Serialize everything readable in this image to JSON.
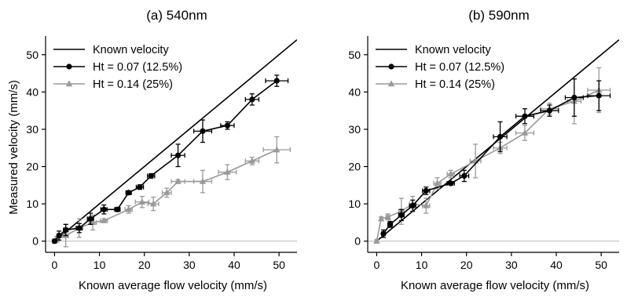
{
  "chart_data": [
    {
      "type": "line",
      "title": "(a) 540nm",
      "xlabel": "Known average flow velocity (mm/s)",
      "ylabel": "Measured velocity (mm/s)",
      "xlim": [
        -2,
        54
      ],
      "ylim": [
        -3,
        55
      ],
      "xticks": [
        0,
        10,
        20,
        30,
        40,
        50
      ],
      "yticks": [
        0,
        10,
        20,
        30,
        40,
        50
      ],
      "legend": "top-left",
      "grid": false,
      "reference_line": {
        "name": "Known velocity",
        "from": [
          0,
          0
        ],
        "to": [
          54,
          54
        ]
      },
      "series": [
        {
          "name": "Ht = 0.07 (12.5%)",
          "color": "#000000",
          "marker": "circle",
          "points": [
            {
              "x": 0.0,
              "y": 0.0,
              "xerr": 0.3,
              "yerr": 0.5
            },
            {
              "x": 1.0,
              "y": 1.5,
              "xerr": 0.4,
              "yerr": 1.2
            },
            {
              "x": 2.5,
              "y": 3.0,
              "xerr": 0.5,
              "yerr": 1.5
            },
            {
              "x": 5.5,
              "y": 3.5,
              "xerr": 0.6,
              "yerr": 1.2
            },
            {
              "x": 8.0,
              "y": 6.0,
              "xerr": 0.7,
              "yerr": 1.5
            },
            {
              "x": 11.0,
              "y": 8.5,
              "xerr": 0.7,
              "yerr": 1.2
            },
            {
              "x": 14.0,
              "y": 8.5,
              "xerr": 0.6,
              "yerr": 0.5
            },
            {
              "x": 16.5,
              "y": 13.0,
              "xerr": 0.6,
              "yerr": 0.5
            },
            {
              "x": 19.0,
              "y": 14.5,
              "xerr": 0.8,
              "yerr": 0.6
            },
            {
              "x": 21.5,
              "y": 17.5,
              "xerr": 0.8,
              "yerr": 0.6
            },
            {
              "x": 27.5,
              "y": 23.0,
              "xerr": 1.5,
              "yerr": 3.0
            },
            {
              "x": 33.0,
              "y": 29.5,
              "xerr": 2.0,
              "yerr": 3.0
            },
            {
              "x": 38.5,
              "y": 31.0,
              "xerr": 1.5,
              "yerr": 1.0
            },
            {
              "x": 44.0,
              "y": 38.0,
              "xerr": 1.5,
              "yerr": 1.5
            },
            {
              "x": 49.5,
              "y": 43.0,
              "xerr": 2.5,
              "yerr": 1.5
            }
          ]
        },
        {
          "name": "Ht = 0.14 (25%)",
          "color": "#999999",
          "marker": "triangle",
          "points": [
            {
              "x": 0.5,
              "y": 0.5,
              "xerr": 0.3,
              "yerr": 0.8
            },
            {
              "x": 2.5,
              "y": 1.5,
              "xerr": 0.6,
              "yerr": 3.0
            },
            {
              "x": 5.5,
              "y": 3.5,
              "xerr": 0.8,
              "yerr": 2.5
            },
            {
              "x": 8.5,
              "y": 5.0,
              "xerr": 0.8,
              "yerr": 2.0
            },
            {
              "x": 11.0,
              "y": 5.5,
              "xerr": 0.8,
              "yerr": 0.5
            },
            {
              "x": 16.5,
              "y": 8.5,
              "xerr": 0.8,
              "yerr": 1.0
            },
            {
              "x": 19.5,
              "y": 10.5,
              "xerr": 1.5,
              "yerr": 1.5
            },
            {
              "x": 22.0,
              "y": 10.0,
              "xerr": 1.2,
              "yerr": 1.8
            },
            {
              "x": 25.0,
              "y": 13.0,
              "xerr": 1.0,
              "yerr": 1.2
            },
            {
              "x": 27.5,
              "y": 16.0,
              "xerr": 1.5,
              "yerr": 0.5
            },
            {
              "x": 33.0,
              "y": 16.0,
              "xerr": 2.0,
              "yerr": 3.0
            },
            {
              "x": 38.5,
              "y": 18.5,
              "xerr": 2.0,
              "yerr": 2.0
            },
            {
              "x": 44.0,
              "y": 21.5,
              "xerr": 1.5,
              "yerr": 1.0
            },
            {
              "x": 49.5,
              "y": 24.5,
              "xerr": 3.0,
              "yerr": 3.5
            }
          ]
        }
      ]
    },
    {
      "type": "line",
      "title": "(b) 590nm",
      "xlabel": "Known average flow velocity (mm/s)",
      "ylabel": "",
      "xlim": [
        -2,
        54
      ],
      "ylim": [
        -3,
        55
      ],
      "xticks": [
        0,
        10,
        20,
        30,
        40,
        50
      ],
      "yticks": [
        0,
        10,
        20,
        30,
        40,
        50
      ],
      "legend": "top-left",
      "grid": false,
      "reference_line": {
        "name": "Known velocity",
        "from": [
          0,
          0
        ],
        "to": [
          54,
          54
        ]
      },
      "series": [
        {
          "name": "Ht = 0.07 (12.5%)",
          "color": "#000000",
          "marker": "circle",
          "points": [
            {
              "x": 1.5,
              "y": 2.0,
              "xerr": 0.4,
              "yerr": 1.0
            },
            {
              "x": 3.0,
              "y": 4.5,
              "xerr": 0.5,
              "yerr": 0.8
            },
            {
              "x": 5.5,
              "y": 7.0,
              "xerr": 0.6,
              "yerr": 1.5
            },
            {
              "x": 8.0,
              "y": 9.5,
              "xerr": 0.7,
              "yerr": 1.5
            },
            {
              "x": 11.0,
              "y": 13.5,
              "xerr": 0.8,
              "yerr": 1.0
            },
            {
              "x": 16.5,
              "y": 15.5,
              "xerr": 0.8,
              "yerr": 0.5
            },
            {
              "x": 19.5,
              "y": 17.5,
              "xerr": 1.0,
              "yerr": 1.5
            },
            {
              "x": 27.5,
              "y": 28.0,
              "xerr": 1.5,
              "yerr": 4.0
            },
            {
              "x": 33.0,
              "y": 33.5,
              "xerr": 2.0,
              "yerr": 2.0
            },
            {
              "x": 38.5,
              "y": 35.0,
              "xerr": 2.0,
              "yerr": 1.5
            },
            {
              "x": 44.0,
              "y": 38.5,
              "xerr": 2.0,
              "yerr": 5.0
            },
            {
              "x": 49.5,
              "y": 39.0,
              "xerr": 2.5,
              "yerr": 4.0
            }
          ]
        },
        {
          "name": "Ht = 0.14 (25%)",
          "color": "#999999",
          "marker": "triangle",
          "points": [
            {
              "x": 0.0,
              "y": 0.0,
              "xerr": 0.3,
              "yerr": 0.3
            },
            {
              "x": 1.0,
              "y": 6.0,
              "xerr": 0.3,
              "yerr": 0.5
            },
            {
              "x": 2.5,
              "y": 6.5,
              "xerr": 0.4,
              "yerr": 0.8
            },
            {
              "x": 5.5,
              "y": 8.0,
              "xerr": 0.6,
              "yerr": 3.5
            },
            {
              "x": 8.0,
              "y": 10.0,
              "xerr": 0.7,
              "yerr": 2.0
            },
            {
              "x": 11.0,
              "y": 9.5,
              "xerr": 0.8,
              "yerr": 2.0
            },
            {
              "x": 13.5,
              "y": 15.5,
              "xerr": 0.8,
              "yerr": 1.5
            },
            {
              "x": 16.5,
              "y": 18.0,
              "xerr": 0.8,
              "yerr": 1.0
            },
            {
              "x": 22.0,
              "y": 21.5,
              "xerr": 1.2,
              "yerr": 4.5
            },
            {
              "x": 27.5,
              "y": 25.0,
              "xerr": 1.5,
              "yerr": 1.5
            },
            {
              "x": 33.0,
              "y": 29.0,
              "xerr": 2.0,
              "yerr": 2.0
            },
            {
              "x": 38.5,
              "y": 35.5,
              "xerr": 2.0,
              "yerr": 1.5
            },
            {
              "x": 44.0,
              "y": 37.5,
              "xerr": 1.5,
              "yerr": 6.0
            },
            {
              "x": 49.5,
              "y": 40.5,
              "xerr": 2.5,
              "yerr": 6.0
            }
          ]
        }
      ]
    }
  ]
}
